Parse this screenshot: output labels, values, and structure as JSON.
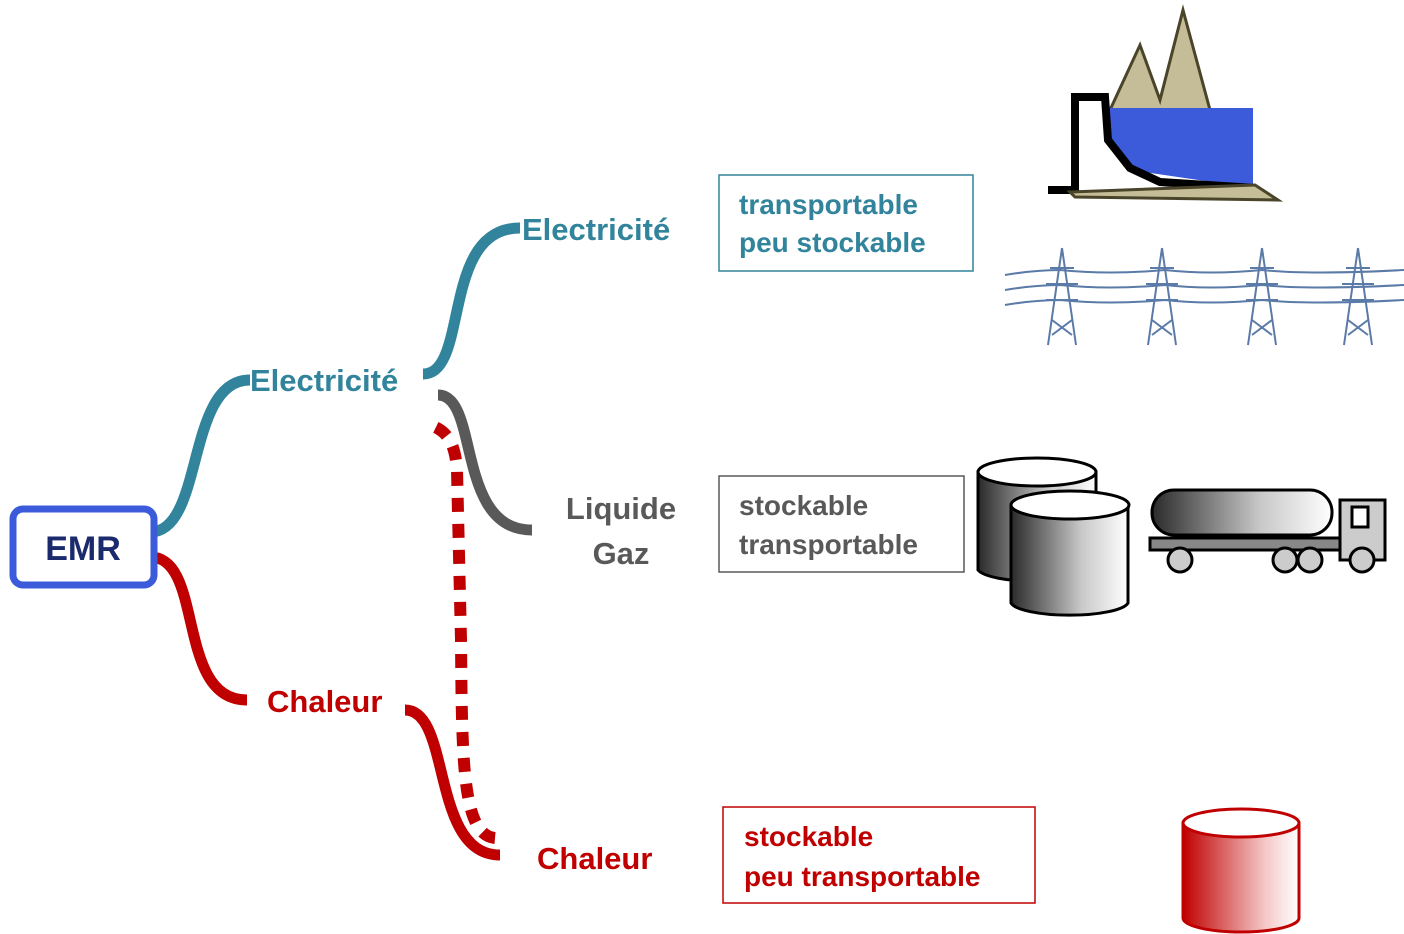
{
  "root": {
    "label": "EMR"
  },
  "level1": [
    {
      "label": "Electricité"
    },
    {
      "label": "Chaleur"
    }
  ],
  "level2": [
    {
      "lines": [
        "Electricité"
      ]
    },
    {
      "lines": [
        "Liquide",
        "Gaz"
      ]
    },
    {
      "lines": [
        "Chaleur"
      ]
    }
  ],
  "boxes": [
    {
      "lines": [
        "transportable",
        "peu stockable"
      ]
    },
    {
      "lines": [
        "stockable",
        "transportable"
      ]
    },
    {
      "lines": [
        "stockable",
        "peu transportable"
      ]
    }
  ]
}
